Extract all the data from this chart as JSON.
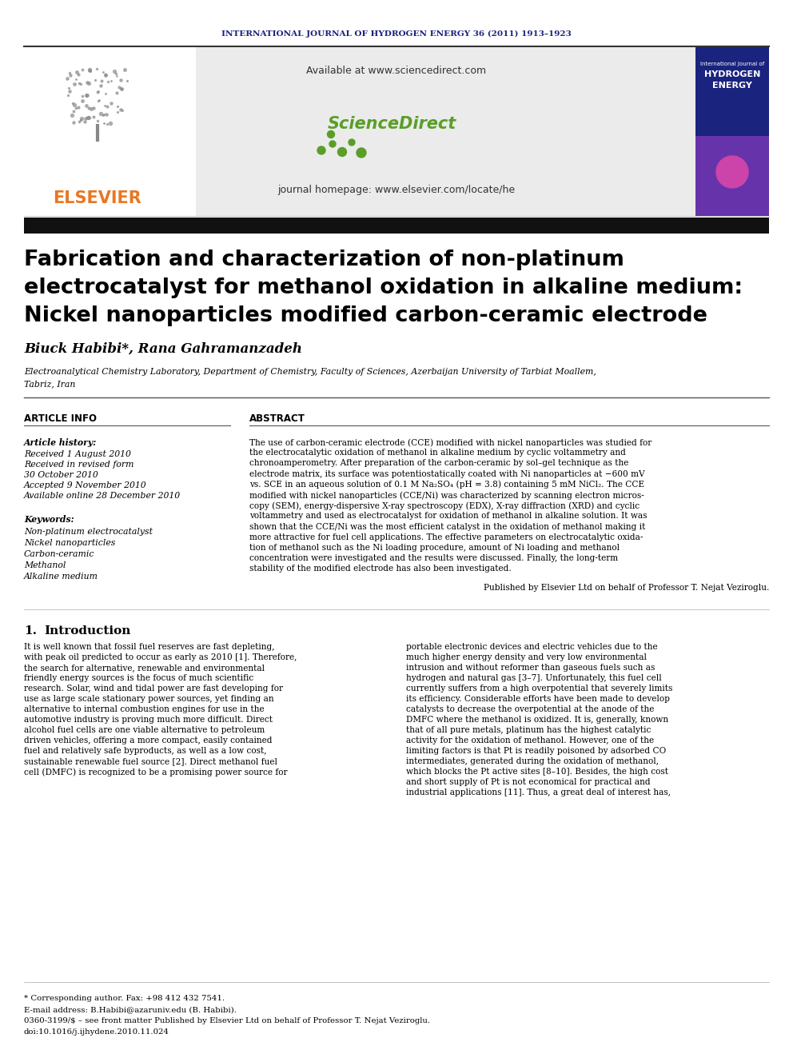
{
  "journal_header": "INTERNATIONAL JOURNAL OF HYDROGEN ENERGY 36 (2011) 1913–1923",
  "journal_header_color": "#1a237e",
  "banner_bg": "#e8e8e8",
  "available_text": "Available at www.sciencedirect.com",
  "journal_homepage": "journal homepage: www.elsevier.com/locate/he",
  "elsevier_color": "#e87722",
  "title_line1": "Fabrication and characterization of non-platinum",
  "title_line2": "electrocatalyst for methanol oxidation in alkaline medium:",
  "title_line3": "Nickel nanoparticles modified carbon-ceramic electrode",
  "authors": "Biuck Habibi*, Rana Gahramanzadeh",
  "affiliation1": "Electroanalytical Chemistry Laboratory, Department of Chemistry, Faculty of Sciences, Azerbaijan University of Tarbiat Moallem,",
  "affiliation2": "Tabriz, Iran",
  "article_info_label": "ARTICLE INFO",
  "abstract_label": "ABSTRACT",
  "article_history_label": "Article history:",
  "received1": "Received 1 August 2010",
  "received2": "Received in revised form",
  "received3": "30 October 2010",
  "accepted": "Accepted 9 November 2010",
  "available_online": "Available online 28 December 2010",
  "keywords_label": "Keywords:",
  "keyword1": "Non-platinum electrocatalyst",
  "keyword2": "Nickel nanoparticles",
  "keyword3": "Carbon-ceramic",
  "keyword4": "Methanol",
  "keyword5": "Alkaline medium",
  "abstract_text": "The use of carbon-ceramic electrode (CCE) modified with nickel nanoparticles was studied for\nthe electrocatalytic oxidation of methanol in alkaline medium by cyclic voltammetry and\nchronoamperometry. After preparation of the carbon-ceramic by sol–gel technique as the\nelectrode matrix, its surface was potentiostatically coated with Ni nanoparticles at −600 mV\nvs. SCE in an aqueous solution of 0.1 M Na₂SO₄ (pH = 3.8) containing 5 mM NiCl₂. The CCE\nmodified with nickel nanoparticles (CCE/Ni) was characterized by scanning electron micros-\ncopy (SEM), energy-dispersive X-ray spectroscopy (EDX), X-ray diffraction (XRD) and cyclic\nvoltammetry and used as electrocatalyst for oxidation of methanol in alkaline solution. It was\nshown that the CCE/Ni was the most efficient catalyst in the oxidation of methanol making it\nmore attractive for fuel cell applications. The effective parameters on electrocatalytic oxida-\ntion of methanol such as the Ni loading procedure, amount of Ni loading and methanol\nconcentration were investigated and the results were discussed. Finally, the long-term\nstability of the modified electrode has also been investigated.",
  "published_by": "Published by Elsevier Ltd on behalf of Professor T. Nejat Veziroglu.",
  "section1_num": "1.",
  "section1_title": "Introduction",
  "intro_col1": "It is well known that fossil fuel reserves are fast depleting,\nwith peak oil predicted to occur as early as 2010 [1]. Therefore,\nthe search for alternative, renewable and environmental\nfriendly energy sources is the focus of much scientific\nresearch. Solar, wind and tidal power are fast developing for\nuse as large scale stationary power sources, yet finding an\nalternative to internal combustion engines for use in the\nautomotive industry is proving much more difficult. Direct\nalcohol fuel cells are one viable alternative to petroleum\ndriven vehicles, offering a more compact, easily contained\nfuel and relatively safe byproducts, as well as a low cost,\nsustainable renewable fuel source [2]. Direct methanol fuel\ncell (DMFC) is recognized to be a promising power source for",
  "intro_col2": "portable electronic devices and electric vehicles due to the\nmuch higher energy density and very low environmental\nintrusion and without reformer than gaseous fuels such as\nhydrogen and natural gas [3–7]. Unfortunately, this fuel cell\ncurrently suffers from a high overpotential that severely limits\nits efficiency. Considerable efforts have been made to develop\ncatalysts to decrease the overpotential at the anode of the\nDMFC where the methanol is oxidized. It is, generally, known\nthat of all pure metals, platinum has the highest catalytic\nactivity for the oxidation of methanol. However, one of the\nlimiting factors is that Pt is readily poisoned by adsorbed CO\nintermediates, generated during the oxidation of methanol,\nwhich blocks the Pt active sites [8–10]. Besides, the high cost\nand short supply of Pt is not economical for practical and\nindustrial applications [11]. Thus, a great deal of interest has,",
  "footnote1": "* Corresponding author. Fax: +98 412 432 7541.",
  "footnote2": "E-mail address: B.Habibi@azaruniv.edu (B. Habibi).",
  "footnote3": "0360-3199/$ – see front matter Published by Elsevier Ltd on behalf of Professor T. Nejat Veziroglu.",
  "footnote4": "doi:10.1016/j.ijhydene.2010.11.024",
  "bg_color": "#ffffff",
  "text_color": "#000000",
  "elsevier_tree_color": "#555555",
  "sciencedirect_green": "#5a9e28",
  "hydrogen_energy_blue": "#1a237e",
  "hydrogen_energy_purple": "#cc44aa",
  "black_bar": "#111111"
}
